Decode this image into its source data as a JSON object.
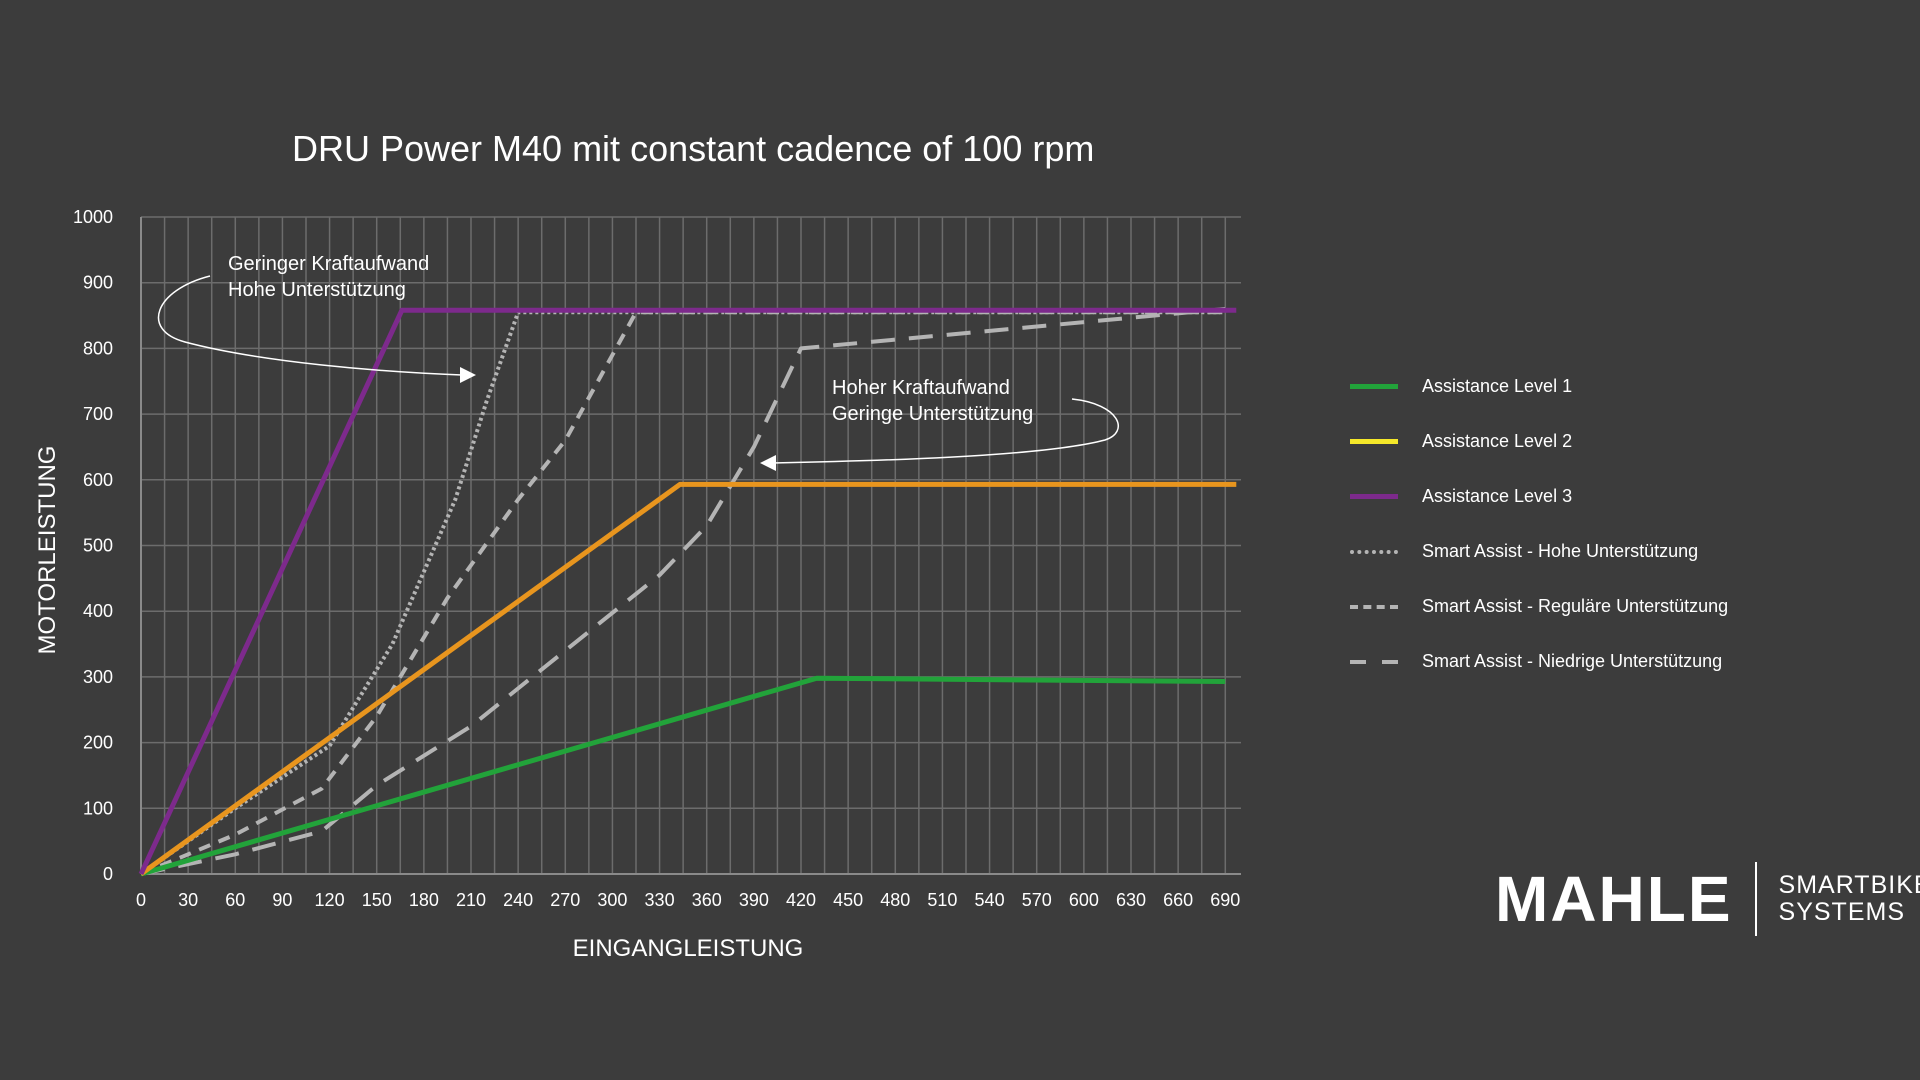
{
  "brand": {
    "name": "MAHLE",
    "line1": "SMARTBIKE",
    "line2": "SYSTEMS"
  },
  "chart_data": {
    "type": "line",
    "title": "DRU Power M40 mit constant cadence of 100 rpm",
    "xlabel": "EINGANGLEISTUNG",
    "ylabel": "MOTORLEISTUNG",
    "xlim": [
      0,
      700
    ],
    "ylim": [
      0,
      1000
    ],
    "x_ticks": [
      0,
      30,
      60,
      90,
      120,
      150,
      180,
      210,
      240,
      270,
      300,
      330,
      360,
      390,
      420,
      450,
      480,
      510,
      540,
      570,
      600,
      630,
      660,
      690
    ],
    "y_ticks": [
      0,
      100,
      200,
      300,
      400,
      500,
      600,
      700,
      800,
      900,
      1000
    ],
    "grid": true,
    "legend_position": "right",
    "series": [
      {
        "name": "Assistance Level 1",
        "color": "#22a33a",
        "style": "solid",
        "legend_color": "#22a33a",
        "x": [
          0,
          430,
          690
        ],
        "y": [
          0,
          298,
          293
        ]
      },
      {
        "name": "Assistance Level 2",
        "color": "#e8951e",
        "style": "solid",
        "legend_color": "#f5e82a",
        "x": [
          0,
          343,
          697
        ],
        "y": [
          0,
          593,
          593
        ]
      },
      {
        "name": "Assistance Level 3",
        "color": "#7d2a8c",
        "style": "solid",
        "legend_color": "#7d2a8c",
        "x": [
          0,
          166,
          697
        ],
        "y": [
          0,
          858,
          858
        ]
      },
      {
        "name": "Smart Assist - Hohe Unterstützung",
        "color": "#b4b4b4",
        "style": "dotted",
        "legend_color": "#b4b4b4",
        "x": [
          0,
          60,
          120,
          160,
          200,
          220,
          240,
          690
        ],
        "y": [
          0,
          100,
          195,
          350,
          570,
          720,
          855,
          855
        ]
      },
      {
        "name": "Smart Assist - Reguläre Unterstützung",
        "color": "#b4b4b4",
        "style": "dashed",
        "legend_color": "#b4b4b4",
        "x": [
          0,
          60,
          115,
          150,
          195,
          240,
          270,
          300,
          315,
          690
        ],
        "y": [
          0,
          60,
          130,
          240,
          420,
          570,
          660,
          790,
          855,
          855
        ]
      },
      {
        "name": "Smart Assist - Niedrige Unterstützung",
        "color": "#b4b4b4",
        "style": "longdash",
        "legend_color": "#b4b4b4",
        "x": [
          0,
          60,
          115,
          150,
          210,
          270,
          330,
          360,
          390,
          420,
          690
        ],
        "y": [
          0,
          30,
          65,
          135,
          225,
          340,
          455,
          530,
          650,
          800,
          860
        ]
      }
    ],
    "annotations": [
      {
        "line1": "Geringer Kraftaufwand",
        "line2": "Hohe Unterstützung"
      },
      {
        "line1": "Hoher Kraftaufwand",
        "line2": "Geringe Unterstützung"
      }
    ]
  }
}
